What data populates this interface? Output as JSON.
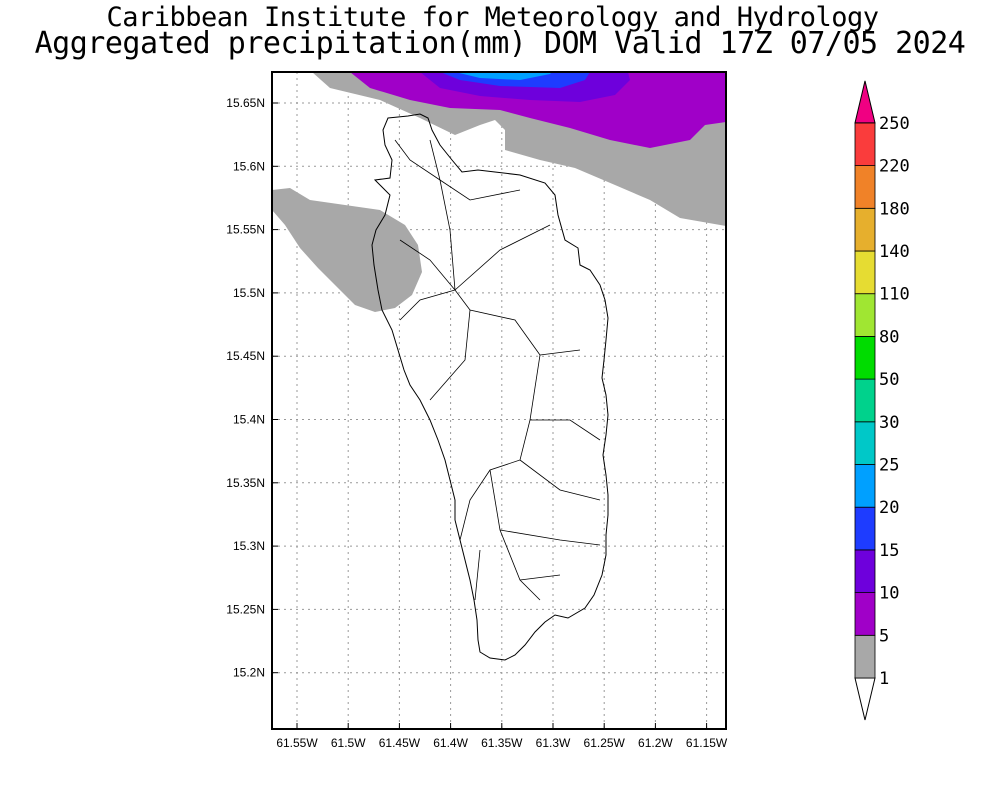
{
  "title": "Caribbean Institute for Meteorology and Hydrology",
  "subtitle": "Aggregated precipitation(mm) DOM Valid 17Z 07/05 2024",
  "map": {
    "lat_ticks": [
      "15.65N",
      "15.6N",
      "15.55N",
      "15.5N",
      "15.45N",
      "15.4N",
      "15.35N",
      "15.3N",
      "15.25N",
      "15.2N"
    ],
    "lon_ticks": [
      "61.55W",
      "61.5W",
      "61.45W",
      "61.4W",
      "61.35W",
      "61.3W",
      "61.25W",
      "61.2W",
      "61.15W"
    ]
  },
  "colorbar": {
    "labels": [
      "1",
      "5",
      "10",
      "15",
      "20",
      "25",
      "30",
      "50",
      "80",
      "110",
      "140",
      "180",
      "220",
      "250"
    ],
    "colors": [
      "#a8a8a8",
      "#a000c8",
      "#6e00dc",
      "#1e3cff",
      "#00a0ff",
      "#00c8c8",
      "#00d28c",
      "#00dc00",
      "#a0e632",
      "#e6dc32",
      "#e6af2d",
      "#f08228",
      "#fa3c3c",
      "#f00082"
    ]
  }
}
